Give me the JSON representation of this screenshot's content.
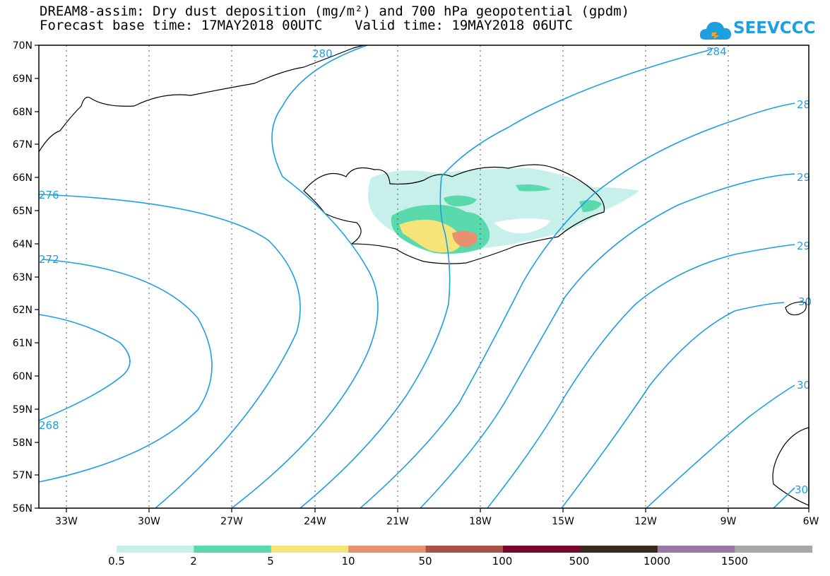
{
  "title": {
    "line1": "DREAM8-assim: Dry dust deposition (mg/m²) and 700 hPa geopotential (gpdm)",
    "line2": "Forecast base time: 17MAY2018 00UTC    Valid time: 19MAY2018 06UTC"
  },
  "logo": {
    "text": "SEEVCCC",
    "icon": "cloud-icon",
    "color": "#1e9fe0"
  },
  "map": {
    "lat_labels": [
      "70N",
      "69N",
      "68N",
      "67N",
      "66N",
      "65N",
      "64N",
      "63N",
      "62N",
      "61N",
      "60N",
      "59N",
      "58N",
      "57N",
      "56N"
    ],
    "lon_labels": [
      "33W",
      "30W",
      "27W",
      "24W",
      "21W",
      "18W",
      "15W",
      "12W",
      "9W",
      "6W"
    ],
    "contour_labels": [
      "280",
      "284",
      "28",
      "276",
      "29",
      "272",
      "29",
      "30",
      "268",
      "30",
      "30"
    ],
    "contour_color": "#1e9fe0"
  },
  "legend": {
    "labels": [
      "0.5",
      "2",
      "5",
      "10",
      "50",
      "100",
      "500",
      "1000",
      "1500"
    ],
    "colors": [
      "#c8f0ea",
      "#5ad9ad",
      "#f5e578",
      "#e89070",
      "#a85444",
      "#7a0a2c",
      "#3a2a1e",
      "#9a78a8",
      "#a8a8a8"
    ]
  }
}
